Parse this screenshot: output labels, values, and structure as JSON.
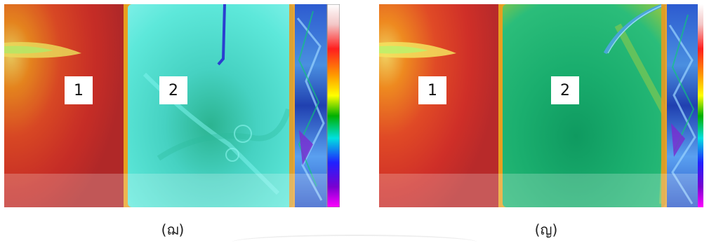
{
  "figures": [
    {
      "caption": "(ฌ)",
      "region_labels": [
        "1",
        "2"
      ],
      "overlay_colors": {
        "warm_region": "#d9442a",
        "cool_region": "#4fe0d0"
      }
    },
    {
      "caption": "(ญ)",
      "region_labels": [
        "1",
        "2"
      ],
      "overlay_colors": {
        "warm_region": "#d9442a",
        "cool_region": "#1fae6e"
      }
    }
  ],
  "color_scale": [
    "#ffffff",
    "#f0c0c0",
    "#ff2020",
    "#ff9a00",
    "#ffff00",
    "#00b000",
    "#00e0e0",
    "#2020ff",
    "#7a00d0",
    "#ff00ff"
  ]
}
